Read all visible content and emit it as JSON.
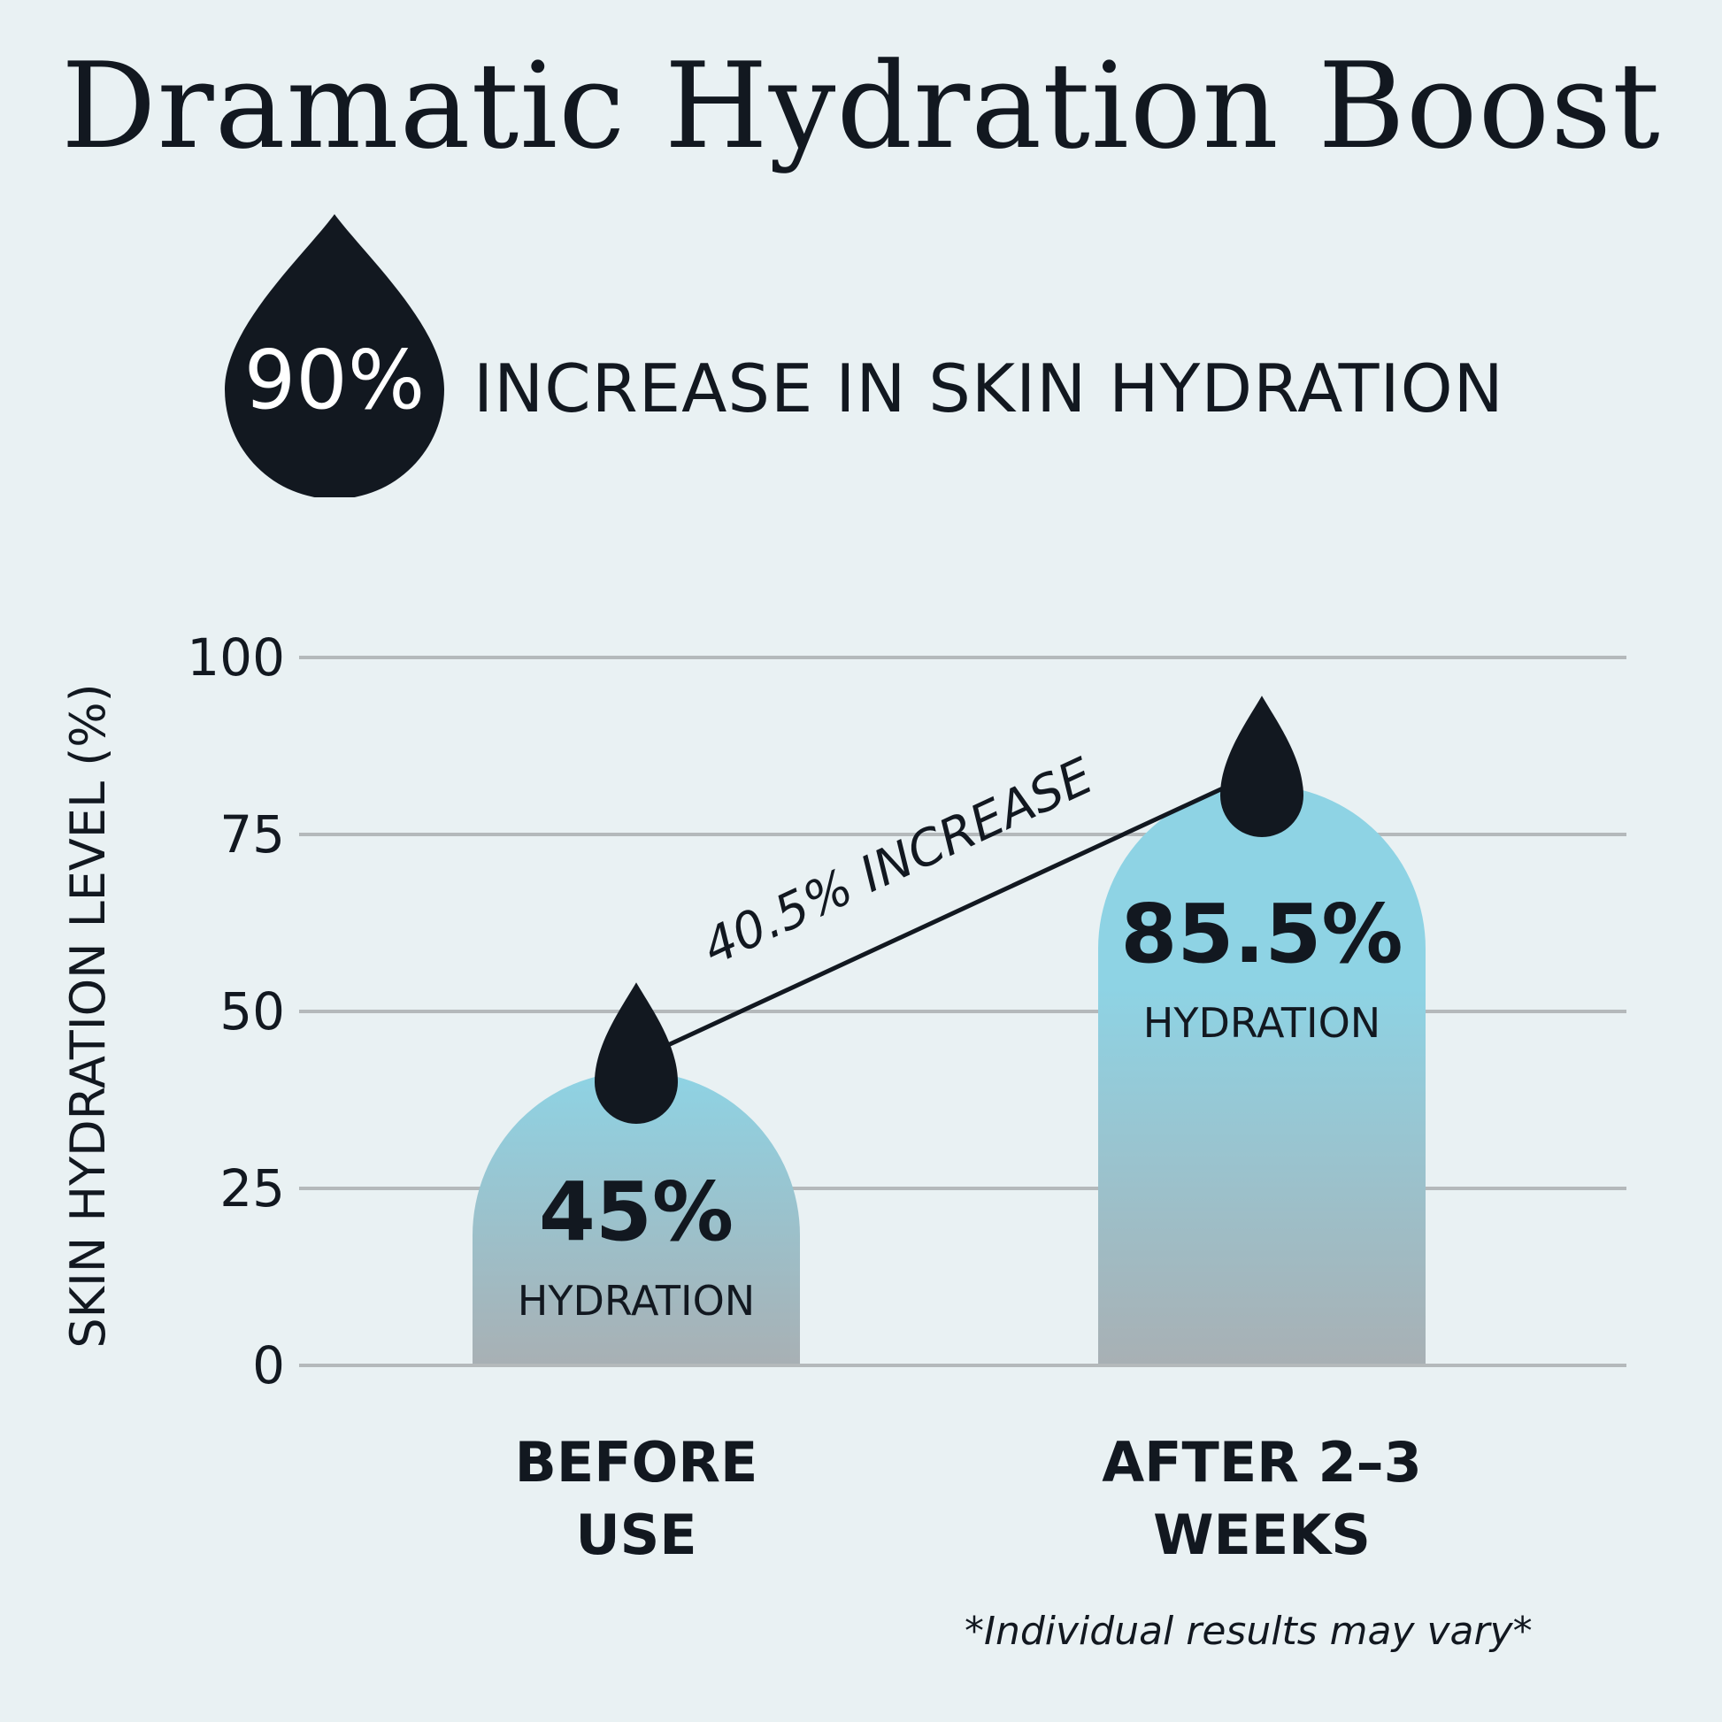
{
  "title": "Dramatic Hydration Boost",
  "headline": {
    "percent": "90%",
    "text": "INCREASE IN SKIN HYDRATION",
    "icon": "water-drop-icon"
  },
  "colors": {
    "background": "#e9f1f3",
    "ink": "#121820",
    "bar_top": "#8ed3e4",
    "bar_bottom": "#a8b0b4",
    "grid": "#b4b9bb"
  },
  "chart_data": {
    "type": "bar",
    "categories": [
      "BEFORE\nUSE",
      "AFTER 2–3\nWEEKS"
    ],
    "values": [
      45,
      85.5
    ],
    "value_labels": [
      "45%",
      "85.5%"
    ],
    "value_sublabels": [
      "HYDRATION",
      "HYDRATION"
    ],
    "ylabel": "SKIN HYDRATION LEVEL (%)",
    "xlabel": "",
    "ylim": [
      0,
      100
    ],
    "yticks": [
      0,
      25,
      50,
      75,
      100
    ],
    "grid": true,
    "annotation": "40.5% INCREASE"
  },
  "footnote": "*Individual results may vary*"
}
